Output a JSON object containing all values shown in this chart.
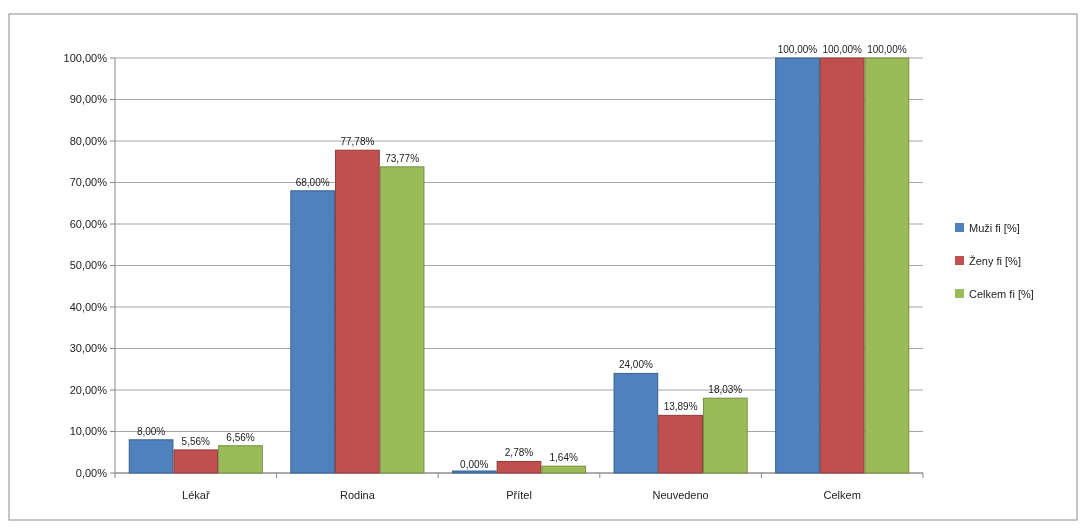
{
  "chart_data": {
    "type": "bar",
    "categories": [
      "Lékař",
      "Rodina",
      "Přítel",
      "Neuvedeno",
      "Celkem"
    ],
    "series": [
      {
        "name": "Muži fi [%]",
        "color": "#4f81bd",
        "values": [
          8,
          68,
          0,
          24,
          100
        ],
        "value_labels": [
          "8,00%",
          "68,00%",
          "0,00%",
          "24,00%",
          "100,00%"
        ]
      },
      {
        "name": "Ženy fi [%]",
        "color": "#c0504d",
        "values": [
          5.56,
          77.78,
          2.78,
          13.89,
          100
        ],
        "value_labels": [
          "5,56%",
          "77,78%",
          "2,78%",
          "13,89%",
          "100,00%"
        ]
      },
      {
        "name": "Celkem fi [%]",
        "color": "#9bbb59",
        "values": [
          6.56,
          73.77,
          1.64,
          18.03,
          100
        ],
        "value_labels": [
          "6,56%",
          "73,77%",
          "1,64%",
          "18,03%",
          "100,00%"
        ]
      }
    ],
    "ylim": [
      0,
      100
    ],
    "yticks": [
      {
        "value": 0,
        "label": "0,00%"
      },
      {
        "value": 10,
        "label": "10,00%"
      },
      {
        "value": 20,
        "label": "20,00%"
      },
      {
        "value": 30,
        "label": "30,00%"
      },
      {
        "value": 40,
        "label": "40,00%"
      },
      {
        "value": 50,
        "label": "50,00%"
      },
      {
        "value": 60,
        "label": "60,00%"
      },
      {
        "value": 70,
        "label": "70,00%"
      },
      {
        "value": 80,
        "label": "80,00%"
      },
      {
        "value": 90,
        "label": "90,00%"
      },
      {
        "value": 100,
        "label": "100,00%"
      }
    ],
    "grid": true,
    "legend": "right"
  }
}
